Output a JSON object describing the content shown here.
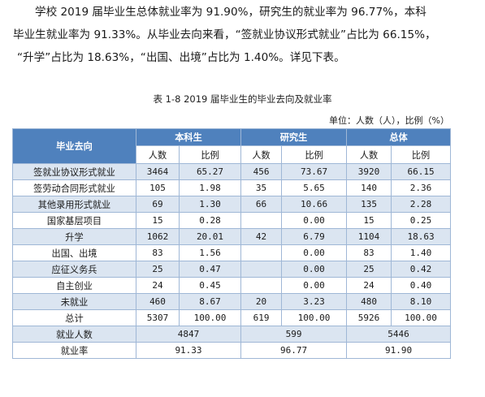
{
  "intro": {
    "line1": "学校 2019 届毕业生总体就业率为 91.90%，研究生的就业率为 96.77%，本科",
    "line2": "毕业生就业率为 91.33%。从毕业去向来看，“签就业协议形式就业”占比为 66.15%，",
    "line3": "“升学”占比为 18.63%，“出国、出境”占比为 1.40%。详见下表。"
  },
  "caption": "表 1-8   2019 届毕业生的毕业去向及就业率",
  "unit_note": "单位：人数（人），比例（%）",
  "table": {
    "header": {
      "destination": "毕业去向",
      "groups": [
        "本科生",
        "研究生",
        "总体"
      ],
      "sub": [
        "人数",
        "比例",
        "人数",
        "比例",
        "人数",
        "比例"
      ]
    },
    "rows": [
      {
        "label": "签就业协议形式就业",
        "cells": [
          "3464",
          "65.27",
          "456",
          "73.67",
          "3920",
          "66.15"
        ]
      },
      {
        "label": "签劳动合同形式就业",
        "cells": [
          "105",
          "1.98",
          "35",
          "5.65",
          "140",
          "2.36"
        ]
      },
      {
        "label": "其他录用形式就业",
        "cells": [
          "69",
          "1.30",
          "66",
          "10.66",
          "135",
          "2.28"
        ]
      },
      {
        "label": "国家基层项目",
        "cells": [
          "15",
          "0.28",
          "",
          "0.00",
          "15",
          "0.25"
        ]
      },
      {
        "label": "升学",
        "cells": [
          "1062",
          "20.01",
          "42",
          "6.79",
          "1104",
          "18.63"
        ]
      },
      {
        "label": "出国、出境",
        "cells": [
          "83",
          "1.56",
          "",
          "0.00",
          "83",
          "1.40"
        ]
      },
      {
        "label": "应征义务兵",
        "cells": [
          "25",
          "0.47",
          "",
          "0.00",
          "25",
          "0.42"
        ]
      },
      {
        "label": "自主创业",
        "cells": [
          "24",
          "0.45",
          "",
          "0.00",
          "24",
          "0.40"
        ]
      },
      {
        "label": "未就业",
        "cells": [
          "460",
          "8.67",
          "20",
          "3.23",
          "480",
          "8.10"
        ]
      },
      {
        "label": "总计",
        "cells": [
          "5307",
          "100.00",
          "619",
          "100.00",
          "5926",
          "100.00"
        ]
      }
    ],
    "employed": {
      "label": "就业人数",
      "values": [
        "4847",
        "599",
        "5446"
      ]
    },
    "rate": {
      "label": "就业率",
      "values": [
        "91.33",
        "96.77",
        "91.90"
      ]
    }
  }
}
